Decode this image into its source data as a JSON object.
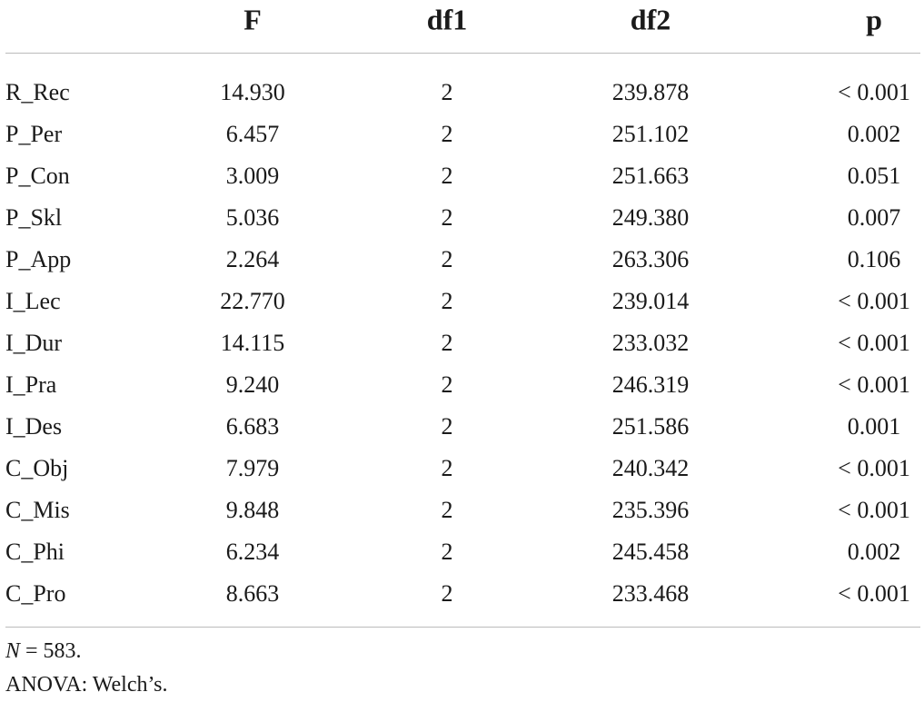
{
  "table": {
    "columns": [
      "F",
      "df1",
      "df2",
      "p"
    ],
    "rows": [
      [
        "R_Rec",
        "14.930",
        "2",
        "239.878",
        "< 0.001"
      ],
      [
        "P_Per",
        "6.457",
        "2",
        "251.102",
        "0.002"
      ],
      [
        "P_Con",
        "3.009",
        "2",
        "251.663",
        "0.051"
      ],
      [
        "P_Skl",
        "5.036",
        "2",
        "249.380",
        "0.007"
      ],
      [
        "P_App",
        "2.264",
        "2",
        "263.306",
        "0.106"
      ],
      [
        "I_Lec",
        "22.770",
        "2",
        "239.014",
        "< 0.001"
      ],
      [
        "I_Dur",
        "14.115",
        "2",
        "233.032",
        "< 0.001"
      ],
      [
        "I_Pra",
        "9.240",
        "2",
        "246.319",
        "< 0.001"
      ],
      [
        "I_Des",
        "6.683",
        "2",
        "251.586",
        "0.001"
      ],
      [
        "C_Obj",
        "7.979",
        "2",
        "240.342",
        "< 0.001"
      ],
      [
        "C_Mis",
        "9.848",
        "2",
        "235.396",
        "< 0.001"
      ],
      [
        "C_Phi",
        "6.234",
        "2",
        "245.458",
        "0.002"
      ],
      [
        "C_Pro",
        "8.663",
        "2",
        "233.468",
        "< 0.001"
      ]
    ]
  },
  "notes": {
    "n_symbol": "N",
    "n_text": " = 583.",
    "anova": "ANOVA: Welch’s."
  }
}
